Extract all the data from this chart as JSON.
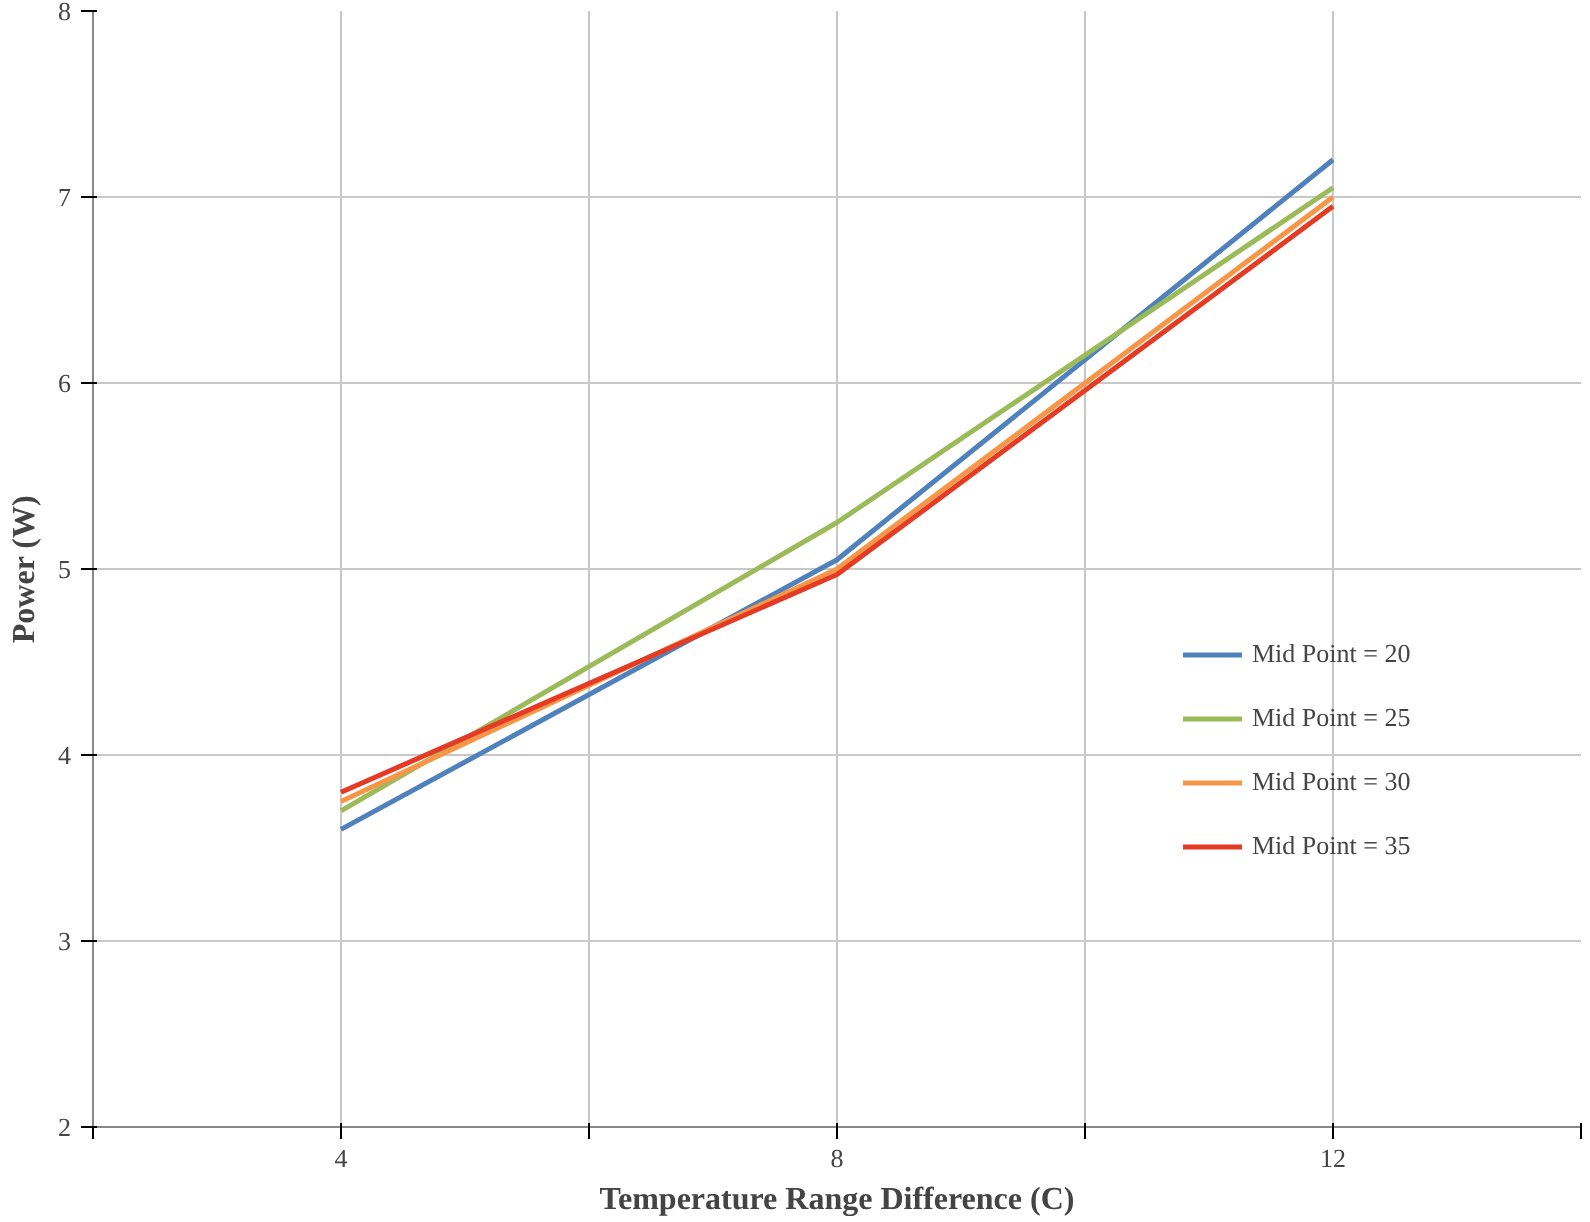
{
  "chart_data": {
    "type": "line",
    "xlabel": "Temperature Range Difference (C)",
    "ylabel": "Power (W)",
    "x": [
      4,
      8,
      12
    ],
    "series": [
      {
        "name": "Mid Point = 20",
        "color": "#4f81bd",
        "values": [
          3.6,
          5.05,
          7.2
        ]
      },
      {
        "name": "Mid Point = 25",
        "color": "#9bbb59",
        "values": [
          3.7,
          5.25,
          7.05
        ]
      },
      {
        "name": "Mid Point = 30",
        "color": "#f79646",
        "values": [
          3.75,
          5.0,
          7.0
        ]
      },
      {
        "name": "Mid Point = 35",
        "color": "#e53b24",
        "values": [
          3.8,
          4.97,
          6.95
        ]
      }
    ],
    "xlim": [
      2,
      14
    ],
    "xticks": [
      {
        "value": 2,
        "label": null
      },
      4,
      {
        "value": 6,
        "label": null
      },
      8,
      {
        "value": 10,
        "label": null
      },
      12,
      {
        "value": 14,
        "label": null
      }
    ],
    "ylim": [
      2,
      8
    ],
    "yticks": [
      2,
      3,
      4,
      5,
      6,
      7,
      8
    ],
    "grid": true,
    "legend": "right",
    "marker": "none",
    "line_style": "solid"
  }
}
